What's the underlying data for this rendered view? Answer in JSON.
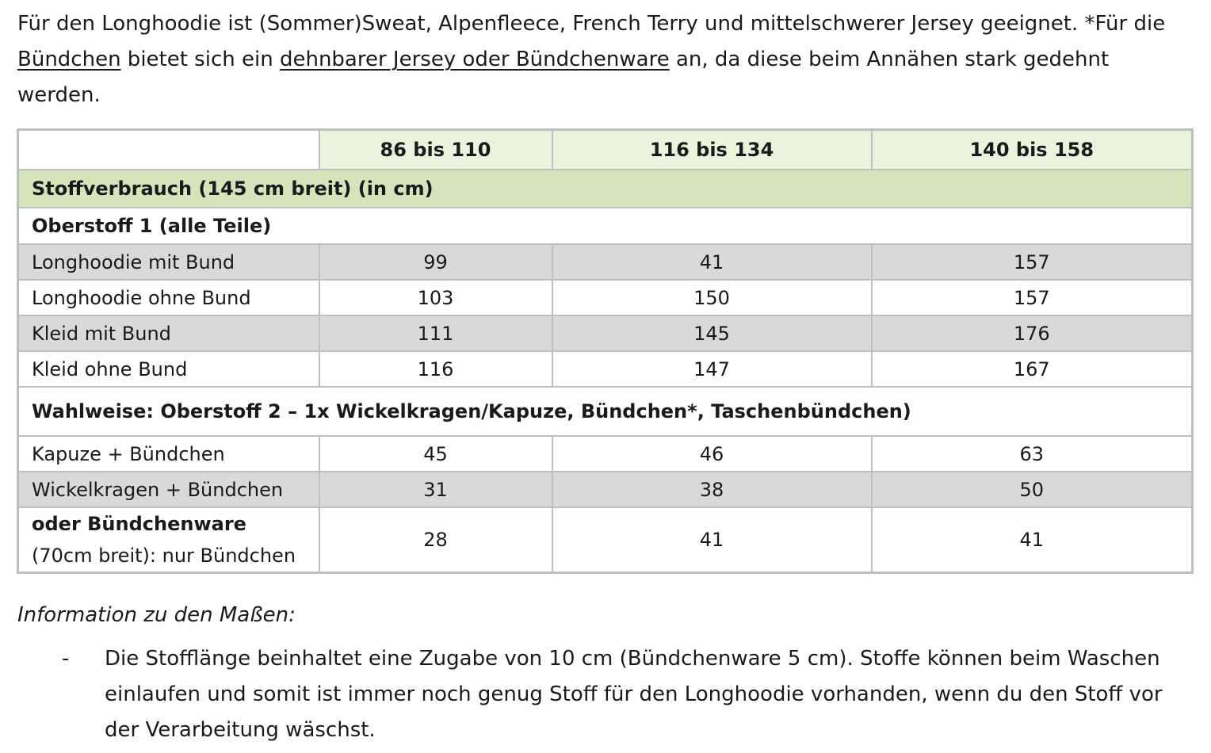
{
  "intro": {
    "t1": "Für den Longhoodie ist (Sommer)Sweat, Alpenfleece, French Terry und mittelschwerer Jersey geeignet. *Für die ",
    "u1": "Bündchen",
    "t2": " bietet sich ein ",
    "u2": "dehnbarer Jersey oder Bündchenware",
    "t3": " an, da diese beim Annähen stark gedehnt werden."
  },
  "table": {
    "headers": [
      "86 bis 110",
      "116 bis 134",
      "140 bis 158"
    ],
    "section_title": "Stoffverbrauch (145 cm breit) (in cm)",
    "group1_title": "Oberstoff 1 (alle Teile)",
    "group1_rows": [
      {
        "label": "Longhoodie mit Bund",
        "values": [
          "99",
          "41",
          "157"
        ]
      },
      {
        "label": "Longhoodie ohne Bund",
        "values": [
          "103",
          "150",
          "157"
        ]
      },
      {
        "label": "Kleid mit Bund",
        "values": [
          "111",
          "145",
          "176"
        ]
      },
      {
        "label": "Kleid ohne Bund",
        "values": [
          "116",
          "147",
          "167"
        ]
      }
    ],
    "group2_title": "Wahlweise: Oberstoff 2 – 1x Wickelkragen/Kapuze, Bündchen*, Taschenbündchen)",
    "group2_rows": [
      {
        "label": "Kapuze + Bündchen",
        "values": [
          "45",
          "46",
          "63"
        ]
      },
      {
        "label": "Wickelkragen + Bündchen",
        "values": [
          "31",
          "38",
          "50"
        ]
      }
    ],
    "last_row": {
      "label_bold": "oder Bündchenware",
      "label_normal": "(70cm breit): nur Bündchen",
      "values": [
        "28",
        "41",
        "41"
      ]
    }
  },
  "info": {
    "title": "Information zu den Maßen:",
    "bullets": [
      {
        "dash": "-",
        "text": "Die Stofflänge beinhaltet eine Zugabe von 10 cm (Bündchenware 5 cm). Stoffe können beim Waschen einlaufen und somit ist immer noch genug Stoff für den Longhoodie vorhanden, wenn du den Stoff vor der Verarbeitung wäschst."
      }
    ]
  },
  "colors": {
    "header_bg": "#ecf3dd",
    "section_bg": "#d5e4bb",
    "row_gray": "#d9d9d9",
    "border": "#bfbfbf"
  }
}
